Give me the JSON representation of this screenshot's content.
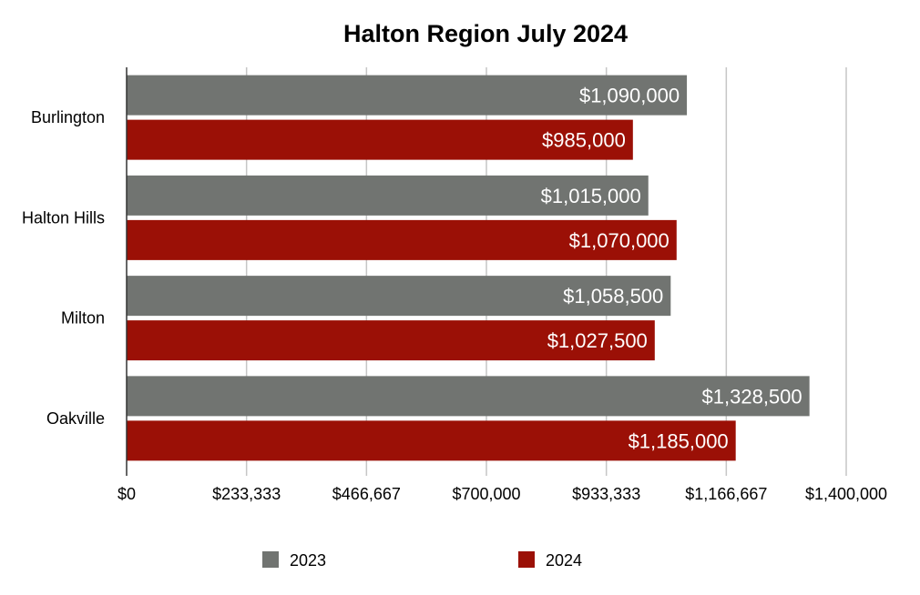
{
  "chart_data": {
    "type": "bar",
    "orientation": "horizontal",
    "title": "Halton Region July 2024",
    "categories": [
      "Burlington",
      "Halton Hills",
      "Milton",
      "Oakville"
    ],
    "series": [
      {
        "name": "2023",
        "color": "#717471",
        "values": [
          1090000,
          1015000,
          1058500,
          1328500
        ],
        "labels": [
          "$1,090,000",
          "$1,015,000",
          "$1,058,500",
          "$1,328,500"
        ]
      },
      {
        "name": "2024",
        "color": "#9b1006",
        "values": [
          985000,
          1070000,
          1027500,
          1185000
        ],
        "labels": [
          "$985,000",
          "$1,070,000",
          "$1,027,500",
          "$1,185,000"
        ]
      }
    ],
    "xlim": [
      0,
      1400000
    ],
    "xticks": [
      0,
      233333,
      466667,
      700000,
      933333,
      1166667,
      1400000
    ],
    "xtick_labels": [
      "$0",
      "$233,333",
      "$466,667",
      "$700,000",
      "$933,333",
      "$1,166,667",
      "$1,400,000"
    ],
    "grid": true,
    "legend_position": "bottom"
  }
}
